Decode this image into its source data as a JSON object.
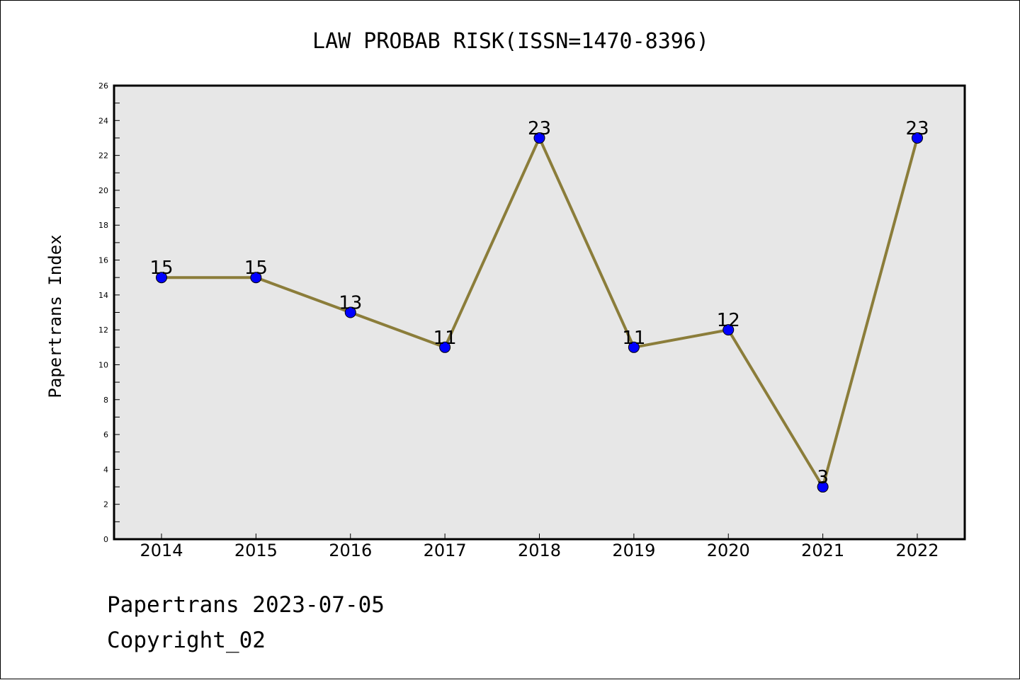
{
  "chart_data": {
    "type": "line",
    "title": "LAW PROBAB RISK(ISSN=1470-8396)",
    "xlabel": "",
    "ylabel": "Papertrans Index",
    "categories": [
      "2014",
      "2015",
      "2016",
      "2017",
      "2018",
      "2019",
      "2020",
      "2021",
      "2022"
    ],
    "series": [
      {
        "values": [
          15,
          15,
          13,
          11,
          23,
          11,
          12,
          3,
          23
        ]
      }
    ],
    "ylim": [
      0,
      26
    ],
    "yticks": [
      0,
      2,
      4,
      6,
      8,
      10,
      12,
      14,
      16,
      18,
      20,
      22,
      24,
      26
    ],
    "grid": false,
    "legend": "none",
    "data_labels": true,
    "colors": {
      "line": "#8B7D3A",
      "marker": "#0000FF",
      "plot_background": "#E7E7E7"
    }
  },
  "footer": {
    "line1": "Papertrans 2023-07-05",
    "line2": "Copyright_02"
  }
}
